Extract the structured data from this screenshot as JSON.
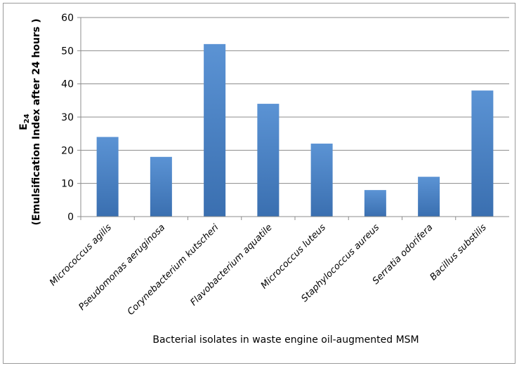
{
  "chart_data": {
    "type": "bar",
    "categories": [
      "Micrococcus agilis",
      "Pseudomonas aeruginosa",
      "Corynebacterium kutscheri",
      "Flavobacterium aquatile",
      "Micrococcus luteus",
      "Staphylococcus aureus",
      "Serratia odorifera",
      "Bacillus substilis"
    ],
    "values": [
      24,
      18,
      52,
      34,
      22,
      8,
      12,
      38
    ],
    "title": "",
    "xlabel": "Bacterial isolates in waste engine oil-augmented MSM",
    "ylabel_symbol": "E",
    "ylabel_subscript": "24",
    "ylabel_line2": "(Emulsification Index after 24 hours )",
    "ylim": [
      0,
      60
    ],
    "yticks": [
      0,
      10,
      20,
      30,
      40,
      50,
      60
    ],
    "grid": true,
    "legend": "none",
    "bar_color": "#3a6fb0",
    "bar_color_light": "#5b93d4"
  }
}
